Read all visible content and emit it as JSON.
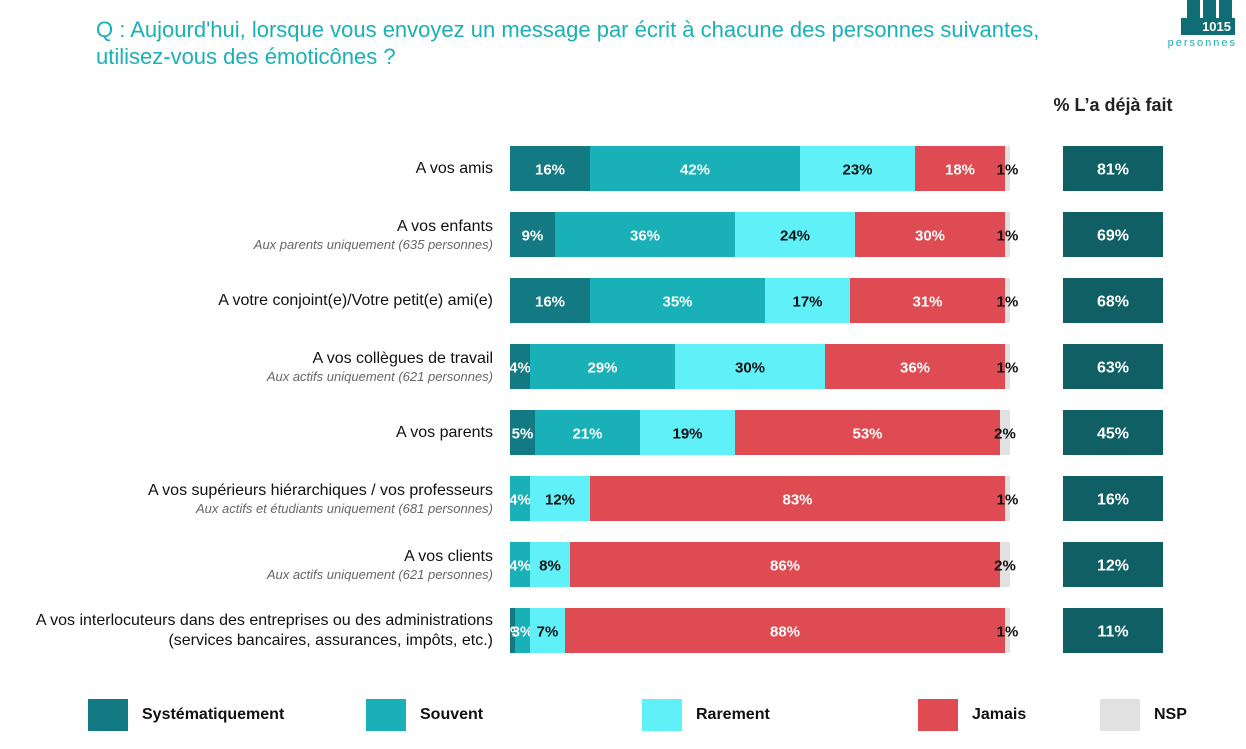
{
  "title": "Q : Aujourd'hui, lorsque vous envoyez un message par écrit à chacune des personnes suivantes, utilisez-vous des émoticônes ?",
  "logo": {
    "number": "1015",
    "text": "personnes"
  },
  "pct_header": "% L’a déjà fait",
  "colors": {
    "Systématiquement": "#137983",
    "Souvent": "#1ab0b8",
    "Rarement": "#5ff0f8",
    "Jamais": "#de4b52",
    "NSP": "#e1e1e1",
    "pct_box": "#0f5f65"
  },
  "rows": [
    {
      "label": "A vos amis",
      "sublabel": ""
    },
    {
      "label": "A vos enfants",
      "sublabel": "Aux parents uniquement (635 personnes)"
    },
    {
      "label": "A votre conjoint(e)/Votre petit(e) ami(e)",
      "sublabel": ""
    },
    {
      "label": "A vos collègues de travail",
      "sublabel": "Aux actifs uniquement (621 personnes)"
    },
    {
      "label": "A vos parents",
      "sublabel": ""
    },
    {
      "label": "A vos supérieurs hiérarchiques / vos professeurs",
      "sublabel": "Aux actifs et étudiants uniquement (681 personnes)"
    },
    {
      "label": "A vos clients",
      "sublabel": "Aux actifs uniquement (621 personnes)"
    },
    {
      "label": "A vos interlocuteurs dans des entreprises ou des administrations (services bancaires, assurances, impôts, etc.)",
      "sublabel": ""
    }
  ],
  "chart_data": {
    "type": "bar",
    "orientation": "horizontal",
    "stacked": true,
    "categories": [
      "A vos amis",
      "A vos enfants",
      "A votre conjoint(e)/Votre petit(e) ami(e)",
      "A vos collègues de travail",
      "A vos parents",
      "A vos supérieurs hiérarchiques / vos professeurs",
      "A vos clients",
      "A vos interlocuteurs dans des entreprises ou des administrations (services bancaires, assurances, impôts, etc.)"
    ],
    "series": [
      {
        "name": "Systématiquement",
        "values": [
          16,
          9,
          16,
          4,
          5,
          0,
          0,
          1
        ]
      },
      {
        "name": "Souvent",
        "values": [
          42,
          36,
          35,
          29,
          21,
          4,
          4,
          3
        ]
      },
      {
        "name": "Rarement",
        "values": [
          23,
          24,
          17,
          30,
          19,
          12,
          8,
          7
        ]
      },
      {
        "name": "Jamais",
        "values": [
          18,
          30,
          31,
          36,
          53,
          83,
          86,
          88
        ]
      },
      {
        "name": "NSP",
        "values": [
          1,
          1,
          1,
          1,
          2,
          1,
          2,
          1
        ]
      }
    ],
    "bar_labels": [
      [
        "16%",
        "42%",
        "23%",
        "18%",
        "1%"
      ],
      [
        "9%",
        "36%",
        "24%",
        "30%",
        "1%"
      ],
      [
        "16%",
        "35%",
        "17%",
        "31%",
        "1%"
      ],
      [
        "4%",
        "29%",
        "30%",
        "36%",
        "1%"
      ],
      [
        "5%",
        "21%",
        "19%",
        "53%",
        "2%"
      ],
      [
        "",
        "4%",
        "12%",
        "83%",
        "1%"
      ],
      [
        "",
        "4%",
        "8%",
        "86%",
        "2%"
      ],
      [
        "1%",
        "3%",
        "7%",
        "88%",
        "1%"
      ]
    ],
    "pct_already_done": [
      "81%",
      "69%",
      "68%",
      "63%",
      "45%",
      "16%",
      "12%",
      "11%"
    ],
    "legend": [
      "Systématiquement",
      "Souvent",
      "Rarement",
      "Jamais",
      "NSP"
    ],
    "legend_position": "bottom",
    "xlim": [
      0,
      100
    ],
    "grid": false
  }
}
